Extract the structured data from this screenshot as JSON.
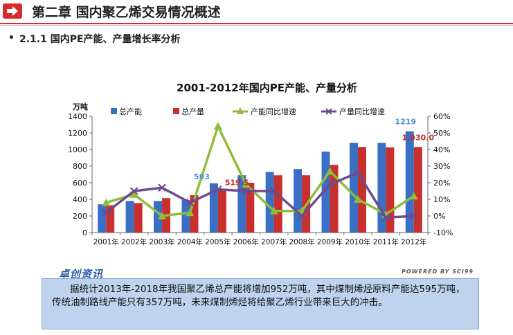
{
  "header": {
    "title": "第二章  国内聚乙烯交易情况概述",
    "icon": "arrow-right-icon",
    "accent": "#d92b2b"
  },
  "section": {
    "bullet": "•",
    "title": "2.1.1 国内PE产能、产量增长率分析"
  },
  "footer": {
    "logo": "卓创资讯",
    "powered": "POWERED BY SCI99"
  },
  "note": {
    "text": "据统计2013年-2018年我国聚乙烯总产能将增加952万吨，其中煤制烯烃原料产能达595万吨，传统油制路线产能只有357万吨，未来煤制烯烃将给聚乙烯行业带来巨大的冲击。"
  },
  "chart_data": {
    "type": "bar",
    "title": "2001-2012年国内PE产能、产量分析",
    "ylabel": "万吨",
    "categories": [
      "2001年",
      "2002年",
      "2003年",
      "2004年",
      "2005年",
      "2006年",
      "2007年",
      "2008年",
      "2009年",
      "2010年",
      "2011年",
      "2012年"
    ],
    "ylim": [
      0,
      1400
    ],
    "y_ticks": [
      "0",
      "200",
      "400",
      "600",
      "800",
      "1000",
      "1200",
      "1400"
    ],
    "y2lim": [
      -10,
      60
    ],
    "y2_ticks": [
      "-10%",
      "0%",
      "10%",
      "20%",
      "30%",
      "40%",
      "50%",
      "60%"
    ],
    "legend_position": "top",
    "series": [
      {
        "name": "总产能",
        "kind": "bar",
        "axis": "left",
        "color": "#3a6fc4",
        "values": [
          340,
          380,
          380,
          390,
          593,
          690,
          730,
          765,
          975,
          1080,
          1080,
          1219
        ]
      },
      {
        "name": "总产量",
        "kind": "bar",
        "axis": "left",
        "color": "#c8302e",
        "values": [
          330,
          355,
          415,
          450,
          519.5,
          600,
          690,
          690,
          815,
          1030,
          1025,
          1030
        ]
      },
      {
        "name": "产能同比增速",
        "kind": "line",
        "axis": "right",
        "color": "#8ebc3b",
        "marker": "triangle",
        "values": [
          8,
          13,
          0,
          2,
          54,
          19,
          3,
          3,
          27,
          10,
          1,
          12
        ]
      },
      {
        "name": "产量同比增速",
        "kind": "line",
        "axis": "right",
        "color": "#6e4a8e",
        "marker": "x",
        "values": [
          2,
          15,
          17,
          8,
          16,
          15,
          15,
          0,
          19,
          26,
          -1,
          0
        ]
      }
    ],
    "data_labels": [
      {
        "series": 0,
        "index": 4,
        "text": "593",
        "color": "#4a8fd6"
      },
      {
        "series": 1,
        "index": 4,
        "text": "519.5",
        "color": "#c8302e"
      },
      {
        "series": 0,
        "index": 11,
        "text": "1219",
        "color": "#4a8fd6"
      },
      {
        "series": 1,
        "index": 11,
        "text": "1,030.0",
        "color": "#c8302e"
      }
    ]
  }
}
